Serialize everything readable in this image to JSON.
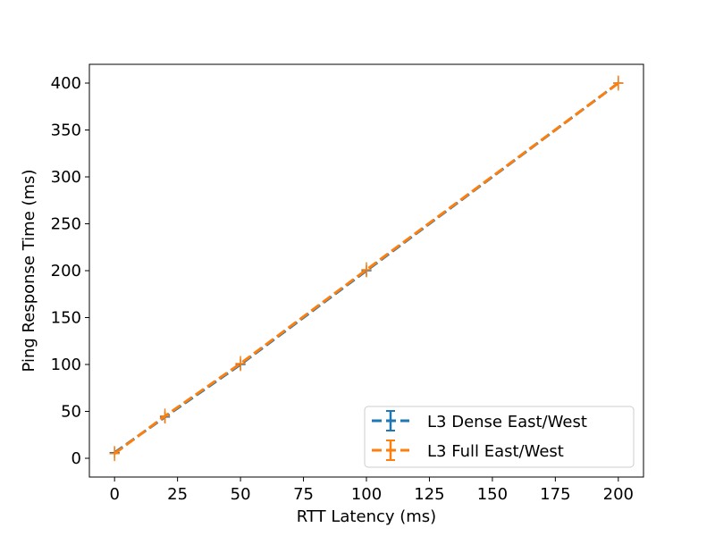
{
  "chart_data": {
    "type": "line",
    "xlabel": "RTT Latency (ms)",
    "ylabel": "Ping Response Time (ms)",
    "xlim": [
      -10,
      210
    ],
    "ylim": [
      -20,
      420
    ],
    "xticks": [
      0,
      25,
      50,
      75,
      100,
      125,
      150,
      175,
      200
    ],
    "yticks": [
      0,
      50,
      100,
      150,
      200,
      250,
      300,
      350,
      400
    ],
    "grid": false,
    "legend_position": "lower-right",
    "x": [
      0,
      20,
      50,
      100,
      200
    ],
    "series": [
      {
        "name": "L3 Dense East/West",
        "color": "#1f77b4",
        "values": [
          6,
          44,
          100,
          200,
          400
        ],
        "xerr": [
          2,
          2,
          2,
          2,
          2
        ],
        "yerr": [
          6,
          6,
          6,
          6,
          6
        ]
      },
      {
        "name": "L3 Full East/West",
        "color": "#ff7f0e",
        "values": [
          5,
          45,
          101,
          201,
          400
        ],
        "xerr": [
          2,
          2,
          2,
          2,
          2
        ],
        "yerr": [
          8,
          8,
          8,
          8,
          8
        ]
      }
    ]
  }
}
